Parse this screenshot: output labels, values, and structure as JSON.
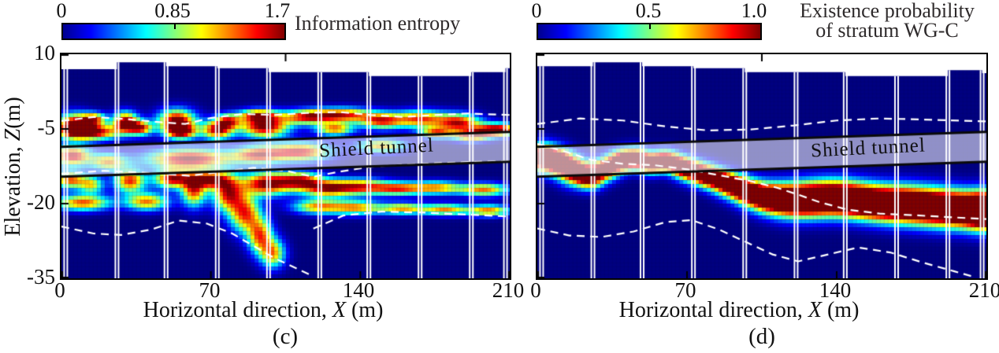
{
  "figure": {
    "ylabel": {
      "prefix": "Elevation, ",
      "italic": "Z",
      "suffix": "(m)"
    },
    "xlabel": {
      "prefix": "Horizontal direction, ",
      "italic": "X",
      "suffix": " (m)"
    }
  },
  "colors": {
    "background": "#ffffff",
    "axis": "#000000",
    "dashed_line": "#ffffff",
    "borehole_line": "#ffffff",
    "tunnel_fill": "rgba(240,240,250,0.60)",
    "tunnel_border": "#0a0a0a",
    "grid_line": "rgba(5,5,60,0.22)"
  },
  "chart_data": [
    {
      "type": "heatmap",
      "panel_label": "(c)",
      "colormap": "jet",
      "grid": true,
      "colorbar": {
        "orientation": "horizontal",
        "ticks": [
          "0",
          "0.85",
          "1.7"
        ],
        "title_lines": [
          "Information entropy"
        ]
      },
      "xlim": [
        0,
        210
      ],
      "ylim": [
        -35,
        10
      ],
      "xticks": [
        "0",
        "70",
        "140",
        "210"
      ],
      "xtick_values": [
        0,
        70,
        140,
        210
      ],
      "yticks": [
        "10",
        "-5",
        "-20",
        "-35"
      ],
      "ytick_values": [
        10,
        -5,
        -20,
        -35
      ],
      "value_max": 1.7,
      "tunnel": {
        "label": "Shield tunnel",
        "top_z": [
          -8.6,
          -5.6
        ],
        "bottom_z": [
          -14.6,
          -11.6
        ]
      },
      "boreholes": [
        2,
        26,
        49,
        73,
        97,
        121,
        144,
        168,
        192,
        208
      ],
      "terrain_z": [
        7.0,
        7.0,
        8.4,
        7.6,
        7.2,
        6.4,
        6.4,
        5.6,
        5.6,
        6.4,
        7.2
      ],
      "dashed_lines": [
        [
          [
            0,
            -3.4
          ],
          [
            15,
            -2.6
          ],
          [
            30,
            -3.0
          ],
          [
            45,
            -3.6
          ],
          [
            58,
            -4.0
          ],
          [
            70,
            -2.8
          ],
          [
            85,
            -2.0
          ],
          [
            100,
            -2.2
          ],
          [
            115,
            -1.8
          ],
          [
            130,
            -1.6
          ],
          [
            145,
            -2.2
          ],
          [
            160,
            -2.6
          ],
          [
            175,
            -2.2
          ],
          [
            190,
            -1.9
          ],
          [
            210,
            -2.2
          ]
        ],
        [
          [
            0,
            -14.0
          ],
          [
            20,
            -13.4
          ],
          [
            40,
            -13.8
          ],
          [
            60,
            -14.4
          ],
          [
            75,
            -13.6
          ],
          [
            90,
            -12.8
          ],
          [
            105,
            -13.4
          ],
          [
            118,
            -14.6
          ],
          [
            130,
            -13.6
          ],
          [
            145,
            -12.6
          ],
          [
            160,
            -12.2
          ],
          [
            175,
            -11.9
          ],
          [
            195,
            -11.6
          ],
          [
            210,
            -11.5
          ]
        ],
        [
          [
            0,
            -24.6
          ],
          [
            15,
            -26.0
          ],
          [
            28,
            -26.3
          ],
          [
            42,
            -25.2
          ],
          [
            55,
            -23.4
          ],
          [
            68,
            -24.0
          ],
          [
            80,
            -26.0
          ],
          [
            90,
            -28.5
          ],
          [
            100,
            -31.0
          ],
          [
            110,
            -33.0
          ],
          [
            118,
            -34.6
          ]
        ],
        [
          [
            118,
            -25.0
          ],
          [
            132,
            -22.4
          ],
          [
            150,
            -21.6
          ],
          [
            170,
            -21.8
          ],
          [
            190,
            -22.2
          ],
          [
            210,
            -22.6
          ]
        ]
      ],
      "blobs": [
        [
          6,
          -4.2,
          5,
          1.6,
          1.0
        ],
        [
          14,
          -5.6,
          9,
          1.1,
          1.05
        ],
        [
          15,
          -3.0,
          4,
          0.9,
          0.8
        ],
        [
          30,
          -3.6,
          4,
          1.4,
          1.0
        ],
        [
          37,
          -4.8,
          4,
          1.0,
          0.85
        ],
        [
          54,
          -3.4,
          6,
          1.6,
          1.05
        ],
        [
          56,
          -5.6,
          5,
          1.0,
          0.9
        ],
        [
          73,
          -5.2,
          5,
          1.3,
          0.95
        ],
        [
          78,
          -3.4,
          4,
          1.0,
          0.7
        ],
        [
          95,
          -4.4,
          8,
          1.6,
          1.05
        ],
        [
          92,
          -2.2,
          6,
          0.8,
          0.7
        ],
        [
          115,
          -2.6,
          8,
          1.0,
          0.8
        ],
        [
          132,
          -2.2,
          10,
          1.0,
          0.85
        ],
        [
          150,
          -3.4,
          7,
          1.1,
          0.8
        ],
        [
          128,
          -5.0,
          6,
          0.9,
          0.75
        ],
        [
          168,
          -3.0,
          8,
          1.2,
          0.8
        ],
        [
          186,
          -3.8,
          7,
          1.3,
          0.9
        ],
        [
          204,
          -5.2,
          7,
          0.9,
          1.1
        ],
        [
          175,
          -5.8,
          5,
          0.8,
          0.7
        ],
        [
          192,
          -6.4,
          6,
          0.8,
          0.8
        ],
        [
          5,
          -10.4,
          6,
          1.4,
          0.95
        ],
        [
          22,
          -11.6,
          6,
          1.2,
          0.7
        ],
        [
          60,
          -11.0,
          14,
          1.4,
          1.0
        ],
        [
          92,
          -10.2,
          8,
          1.2,
          0.8
        ],
        [
          112,
          -9.6,
          10,
          1.3,
          0.9
        ],
        [
          150,
          -8.4,
          8,
          1.0,
          0.7
        ],
        [
          4,
          -15.2,
          5,
          1.2,
          0.8
        ],
        [
          10,
          -19.8,
          9,
          1.1,
          0.8
        ],
        [
          14,
          -16.2,
          4,
          1.2,
          0.6
        ],
        [
          32,
          -15.4,
          5,
          1.6,
          0.85
        ],
        [
          40,
          -19.6,
          7,
          1.2,
          0.75
        ],
        [
          52,
          -15.0,
          6,
          1.3,
          0.95
        ],
        [
          62,
          -17.4,
          4,
          2.2,
          0.8
        ],
        [
          70,
          -15.2,
          6,
          1.2,
          0.9
        ],
        [
          78,
          -18.0,
          5,
          2.4,
          0.85
        ],
        [
          86,
          -22.0,
          5,
          2.6,
          0.8
        ],
        [
          93,
          -26.5,
          4,
          2.4,
          0.75
        ],
        [
          99,
          -30.0,
          4,
          2.0,
          0.7
        ],
        [
          96,
          -16.0,
          8,
          1.6,
          1.0
        ],
        [
          112,
          -15.4,
          7,
          1.2,
          0.85
        ],
        [
          124,
          -17.0,
          8,
          1.2,
          0.8
        ],
        [
          140,
          -16.6,
          9,
          1.1,
          0.8
        ],
        [
          120,
          -20.6,
          8,
          1.0,
          0.7
        ],
        [
          138,
          -20.8,
          8,
          1.0,
          0.7
        ],
        [
          158,
          -17.0,
          8,
          0.9,
          0.75
        ],
        [
          176,
          -16.8,
          8,
          0.9,
          0.7
        ],
        [
          198,
          -17.2,
          8,
          0.9,
          0.75
        ],
        [
          160,
          -21.0,
          8,
          0.8,
          0.7
        ],
        [
          180,
          -21.2,
          7,
          0.8,
          0.7
        ],
        [
          200,
          -21.4,
          7,
          0.8,
          0.75
        ]
      ]
    },
    {
      "type": "heatmap",
      "panel_label": "(d)",
      "colormap": "jet",
      "grid": true,
      "colorbar": {
        "orientation": "horizontal",
        "ticks": [
          "0",
          "0.5",
          "1.0"
        ],
        "title_lines": [
          "Existence probability",
          "of stratum WG-C"
        ]
      },
      "xlim": [
        0,
        210
      ],
      "ylim": [
        -35,
        10
      ],
      "xticks": [
        "0",
        "70",
        "140",
        "210"
      ],
      "xtick_values": [
        0,
        70,
        140,
        210
      ],
      "yticks": [],
      "ytick_values": [
        10,
        -5,
        -20,
        -35
      ],
      "value_max": 1.0,
      "tunnel": {
        "label": "Shield tunnel",
        "top_z": [
          -8.6,
          -5.6
        ],
        "bottom_z": [
          -14.6,
          -11.6
        ]
      },
      "boreholes": [
        2,
        26,
        49,
        73,
        97,
        121,
        144,
        168,
        192,
        208
      ],
      "terrain_z": [
        7.6,
        7.6,
        8.4,
        7.6,
        7.2,
        6.4,
        6.4,
        5.6,
        5.6,
        6.8,
        6.2
      ],
      "dashed_lines": [
        [
          [
            0,
            -4.0
          ],
          [
            20,
            -2.9
          ],
          [
            40,
            -3.3
          ],
          [
            60,
            -4.5
          ],
          [
            80,
            -5.3
          ],
          [
            100,
            -5.1
          ],
          [
            120,
            -4.3
          ],
          [
            140,
            -3.3
          ],
          [
            160,
            -2.9
          ],
          [
            180,
            -3.1
          ],
          [
            210,
            -3.5
          ]
        ],
        [
          [
            0,
            -8.0
          ],
          [
            12,
            -9.4
          ],
          [
            25,
            -11.2
          ],
          [
            40,
            -12.0
          ],
          [
            55,
            -12.3
          ],
          [
            70,
            -13.1
          ],
          [
            85,
            -14.3
          ],
          [
            100,
            -15.5
          ],
          [
            112,
            -16.8
          ],
          [
            122,
            -18.2
          ],
          [
            132,
            -19.7
          ],
          [
            145,
            -21.2
          ],
          [
            160,
            -22.0
          ],
          [
            175,
            -22.3
          ],
          [
            192,
            -22.7
          ],
          [
            210,
            -23.1
          ]
        ],
        [
          [
            0,
            -25.0
          ],
          [
            15,
            -26.4
          ],
          [
            30,
            -26.7
          ],
          [
            45,
            -25.6
          ],
          [
            60,
            -23.7
          ],
          [
            72,
            -23.3
          ],
          [
            85,
            -25.2
          ],
          [
            100,
            -28.2
          ],
          [
            110,
            -30.2
          ],
          [
            122,
            -31.6
          ],
          [
            136,
            -30.2
          ],
          [
            150,
            -28.8
          ],
          [
            165,
            -29.8
          ],
          [
            180,
            -31.8
          ],
          [
            195,
            -33.6
          ],
          [
            205,
            -34.8
          ]
        ]
      ],
      "blobs": [
        [
          2,
          -10.6,
          5,
          1.8,
          1.1
        ],
        [
          10,
          -11.6,
          5,
          1.8,
          1.1
        ],
        [
          18,
          -13.6,
          5,
          1.8,
          1.05
        ],
        [
          25,
          -14.8,
          4,
          1.5,
          0.95
        ],
        [
          32,
          -13.0,
          4,
          1.5,
          1.0
        ],
        [
          39,
          -11.4,
          4,
          1.5,
          1.05
        ],
        [
          46,
          -10.8,
          4,
          1.4,
          1.0
        ],
        [
          53,
          -12.0,
          4,
          1.4,
          0.95
        ],
        [
          60,
          -11.2,
          4,
          1.4,
          1.0
        ],
        [
          67,
          -12.4,
          4,
          1.4,
          0.95
        ],
        [
          74,
          -13.6,
          5,
          1.5,
          1.0
        ],
        [
          82,
          -14.8,
          5,
          1.5,
          1.0
        ],
        [
          90,
          -16.2,
          5,
          1.6,
          1.0
        ],
        [
          98,
          -17.6,
          5,
          1.7,
          1.0
        ],
        [
          107,
          -18.8,
          6,
          1.9,
          1.05
        ],
        [
          117,
          -19.4,
          7,
          2.2,
          1.1
        ],
        [
          128,
          -19.2,
          7,
          2.3,
          1.1
        ],
        [
          139,
          -18.8,
          7,
          2.3,
          1.1
        ],
        [
          150,
          -19.4,
          7,
          2.3,
          1.1
        ],
        [
          161,
          -20.0,
          7,
          2.3,
          1.1
        ],
        [
          172,
          -20.2,
          7,
          2.4,
          1.1
        ],
        [
          183,
          -20.6,
          7,
          2.4,
          1.1
        ],
        [
          194,
          -21.0,
          7,
          2.4,
          1.1
        ],
        [
          205,
          -21.4,
          7,
          2.4,
          1.1
        ],
        [
          210,
          -21.4,
          5,
          2.4,
          1.1
        ]
      ]
    }
  ]
}
